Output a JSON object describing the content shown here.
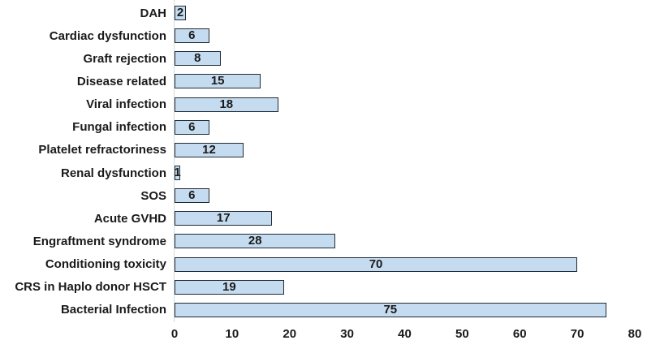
{
  "chart_data": {
    "type": "bar",
    "orientation": "horizontal",
    "title": "",
    "xlabel": "",
    "ylabel": "",
    "categories": [
      "DAH",
      "Cardiac dysfunction",
      "Graft rejection",
      "Disease related",
      "Viral infection",
      "Fungal infection",
      "Platelet refractoriness",
      "Renal dysfunction",
      "SOS",
      "Acute GVHD",
      "Engraftment syndrome",
      "Conditioning toxicity",
      "CRS in Haplo donor HSCT",
      "Bacterial Infection"
    ],
    "values": [
      2,
      6,
      8,
      15,
      18,
      6,
      12,
      1,
      6,
      17,
      28,
      70,
      19,
      75
    ],
    "xlim": [
      0,
      80
    ],
    "xticks": [
      0,
      10,
      20,
      30,
      40,
      50,
      60,
      70,
      80
    ],
    "grid": false,
    "legend": false,
    "data_labels_position": "center",
    "colors": {
      "bar_fill": "#c5dcf0",
      "bar_border": "#212b36",
      "axis_line": "#d9d9d9",
      "text": "#1a1a1a",
      "background": "#ffffff"
    }
  }
}
